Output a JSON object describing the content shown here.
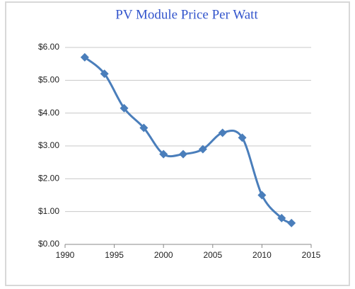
{
  "chart_data": {
    "type": "line",
    "title": "PV Module Price Per Watt",
    "x": [
      1992,
      1994,
      1996,
      1998,
      2000,
      2002,
      2004,
      2006,
      2008,
      2010,
      2012,
      2013
    ],
    "series": [
      {
        "color": "#4a7ebb",
        "values": [
          5.7,
          5.2,
          4.15,
          3.55,
          2.75,
          2.75,
          2.9,
          3.4,
          3.25,
          1.5,
          0.8,
          0.65
        ]
      }
    ],
    "xlim": [
      1990,
      2015
    ],
    "xticks": [
      1990,
      1995,
      2000,
      2005,
      2010,
      2015
    ],
    "ylim": [
      0,
      6
    ],
    "yticks": [
      {
        "value": 0,
        "label": "$0.00"
      },
      {
        "value": 1,
        "label": "$1.00"
      },
      {
        "value": 2,
        "label": "$2.00"
      },
      {
        "value": 3,
        "label": "$3.00"
      },
      {
        "value": 4,
        "label": "$4.00"
      },
      {
        "value": 5,
        "label": "$5.00"
      },
      {
        "value": 6,
        "label": "$6.00"
      }
    ],
    "grid": true,
    "smooth": true
  }
}
